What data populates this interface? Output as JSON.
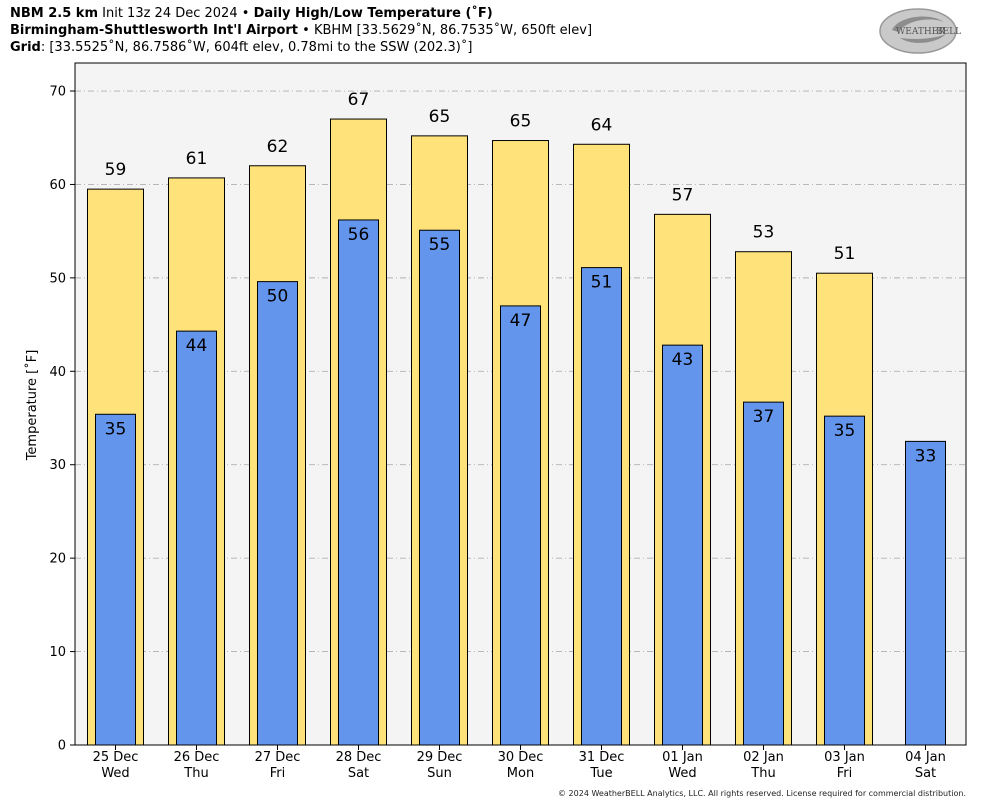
{
  "header": {
    "line1_model": "NBM 2.5 km",
    "line1_init": "Init 13z 24 Dec 2024",
    "line1_sep": "•",
    "line1_product": "Daily High/Low Temperature (˚F)",
    "line2_site": "Birmingham-Shuttlesworth Int'l Airport",
    "line2_sep": "•",
    "line2_info": "KBHM [33.5629˚N, 86.7535˚W, 650ft elev]",
    "line3_label": "Grid",
    "line3_info": ": [33.5525˚N, 86.7586˚W, 604ft elev, 0.78mi to the SSW (202.3)˚]"
  },
  "logo": {
    "text_top": "WEATHER",
    "text_bottom": "BELL"
  },
  "copyright": "© 2024 WeatherBELL Analytics, LLC. All rights reserved. License required for commercial distribution.",
  "colors": {
    "high": "#ffe37a",
    "low": "#6495ed",
    "plot_bg": "#f4f4f4",
    "grid": "#b0b0b0"
  },
  "chart_data": {
    "type": "bar",
    "ylabel": "Temperature [˚F]",
    "ylim": [
      0,
      73
    ],
    "yticks": [
      0,
      10,
      20,
      30,
      40,
      50,
      60,
      70
    ],
    "grid": true,
    "categories": [
      {
        "date": "25 Dec",
        "day": "Wed"
      },
      {
        "date": "26 Dec",
        "day": "Thu"
      },
      {
        "date": "27 Dec",
        "day": "Fri"
      },
      {
        "date": "28 Dec",
        "day": "Sat"
      },
      {
        "date": "29 Dec",
        "day": "Sun"
      },
      {
        "date": "30 Dec",
        "day": "Mon"
      },
      {
        "date": "31 Dec",
        "day": "Tue"
      },
      {
        "date": "01 Jan",
        "day": "Wed"
      },
      {
        "date": "02 Jan",
        "day": "Thu"
      },
      {
        "date": "03 Jan",
        "day": "Fri"
      },
      {
        "date": "04 Jan",
        "day": "Sat"
      }
    ],
    "series": [
      {
        "values": [
          59.5,
          60.7,
          62.0,
          67.0,
          65.2,
          64.7,
          64.3,
          56.8,
          52.8,
          50.5,
          null
        ],
        "labels": [
          "59",
          "61",
          "62",
          "67",
          "65",
          "65",
          "64",
          "57",
          "53",
          "51",
          ""
        ]
      },
      {
        "values": [
          35.4,
          44.3,
          49.6,
          56.2,
          55.1,
          47.0,
          51.1,
          42.8,
          36.7,
          35.2,
          32.5
        ],
        "labels": [
          "35",
          "44",
          "50",
          "56",
          "55",
          "47",
          "51",
          "43",
          "37",
          "35",
          "33"
        ]
      }
    ]
  }
}
